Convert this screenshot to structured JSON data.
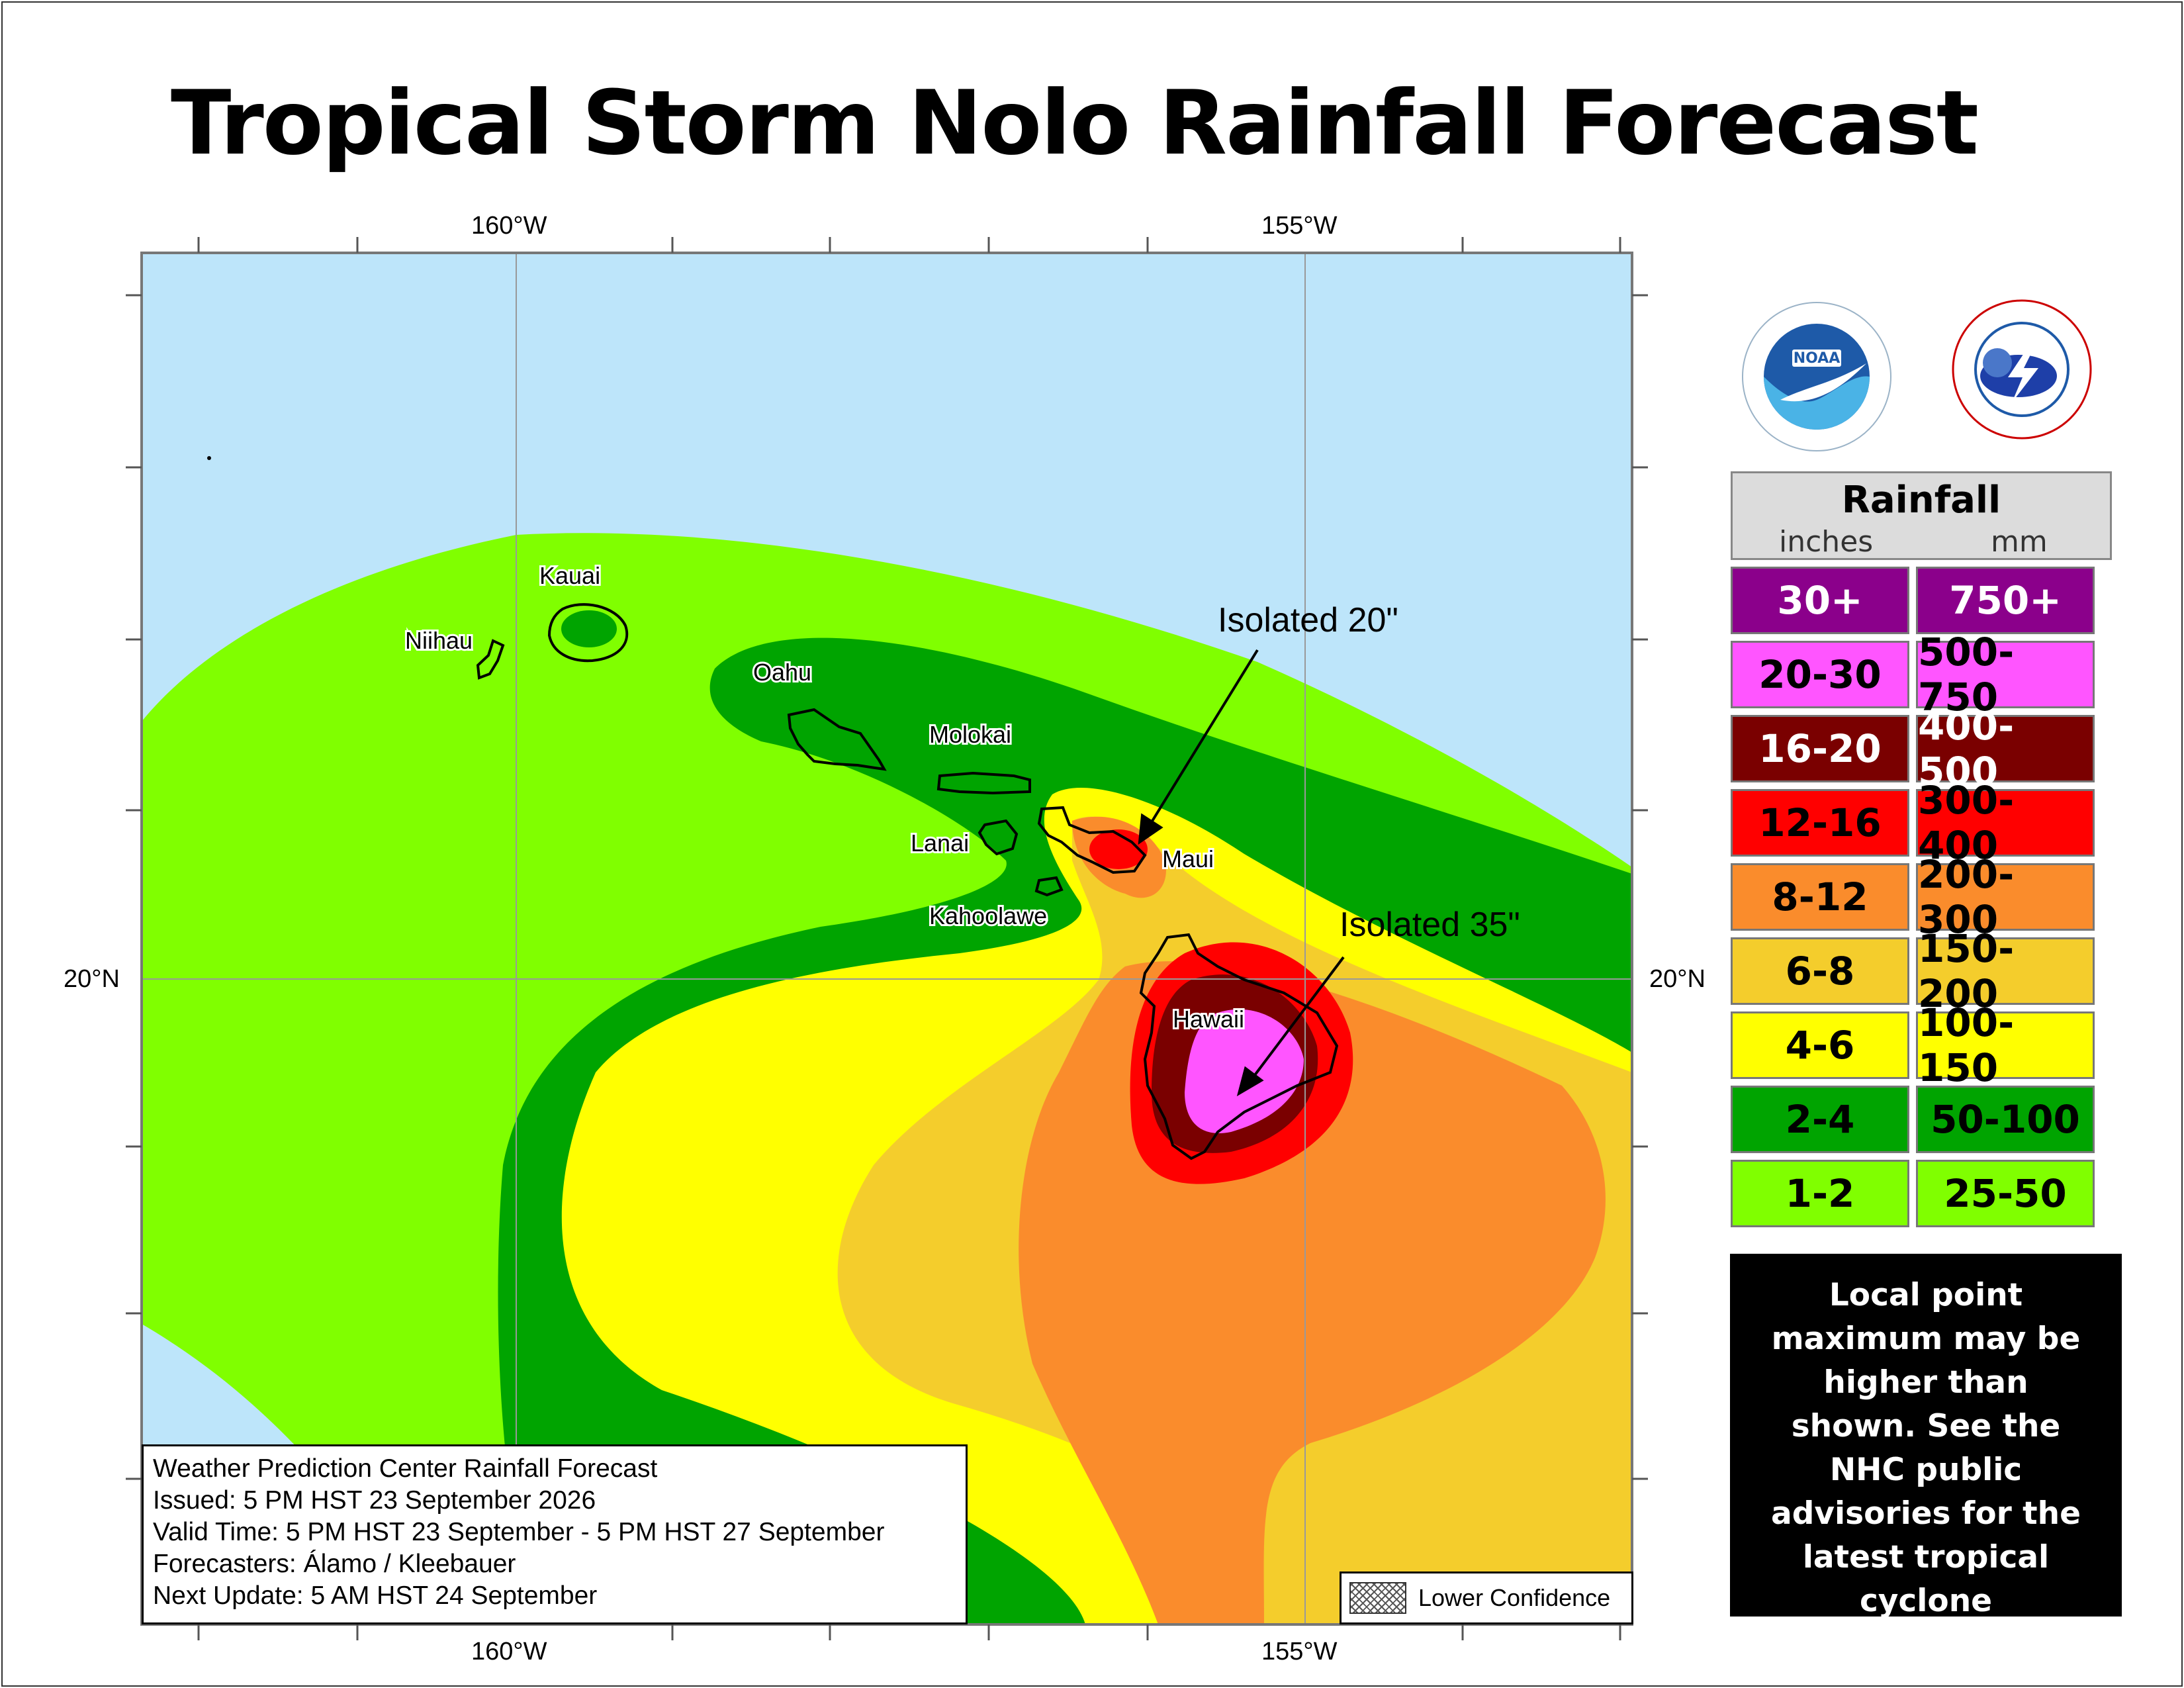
{
  "title": "Tropical Storm Nolo Rainfall Forecast",
  "axes": {
    "lon_labels": [
      "160°W",
      "155°W"
    ],
    "lat_labels": [
      "20°N"
    ]
  },
  "map": {
    "islands": [
      "Kauai",
      "Niihau",
      "Oahu",
      "Molokai",
      "Lanai",
      "Maui",
      "Kahoolawe",
      "Hawaii"
    ],
    "callouts": [
      "Isolated 20\"",
      "Isolated 35\""
    ],
    "colors": {
      "ocean": "#bde5fa",
      "band_1_2": "#80ff00",
      "band_2_4": "#00a400",
      "band_4_6": "#ffff00",
      "band_6_8": "#f4cd2c",
      "band_8_12": "#fa8c2c",
      "band_12_16": "#ff0000",
      "band_16_20": "#7a0000",
      "band_20_30": "#ff55ff",
      "band_30_plus": "#8b008b"
    }
  },
  "logos": {
    "noaa": "noaa-logo",
    "nws": "nws-logo"
  },
  "legend": {
    "title": "Rainfall",
    "unit_inches": "inches",
    "unit_mm": "mm",
    "rows": [
      {
        "inches": "30+",
        "mm": "750+",
        "color": "#8b008b",
        "text_color": "#ffffff"
      },
      {
        "inches": "20-30",
        "mm": "500-750",
        "color": "#ff55ff",
        "text_color": "#000000"
      },
      {
        "inches": "16-20",
        "mm": "400-500",
        "color": "#7a0000",
        "text_color": "#ffffff"
      },
      {
        "inches": "12-16",
        "mm": "300-400",
        "color": "#ff0000",
        "text_color": "#000000"
      },
      {
        "inches": "8-12",
        "mm": "200-300",
        "color": "#fa8c2c",
        "text_color": "#000000"
      },
      {
        "inches": "6-8",
        "mm": "150-200",
        "color": "#f4cd2c",
        "text_color": "#000000"
      },
      {
        "inches": "4-6",
        "mm": "100-150",
        "color": "#ffff00",
        "text_color": "#000000"
      },
      {
        "inches": "2-4",
        "mm": "50-100",
        "color": "#00a400",
        "text_color": "#000000"
      },
      {
        "inches": "1-2",
        "mm": "25-50",
        "color": "#80ff00",
        "text_color": "#000000"
      }
    ]
  },
  "note": "Local point maximum may be higher than shown. See the NHC public advisories for the latest tropical cyclone information.",
  "info": {
    "line1": "Weather Prediction Center Rainfall Forecast",
    "line2": "Issued: 5 PM HST 23 September 2026",
    "line3": "Valid Time: 5 PM HST 23 September - 5 PM HST 27 September",
    "line4": "Forecasters: Álamo / Kleebauer",
    "line5": "Next Update: 5 AM HST 24 September"
  },
  "lower_confidence": "Lower Confidence"
}
